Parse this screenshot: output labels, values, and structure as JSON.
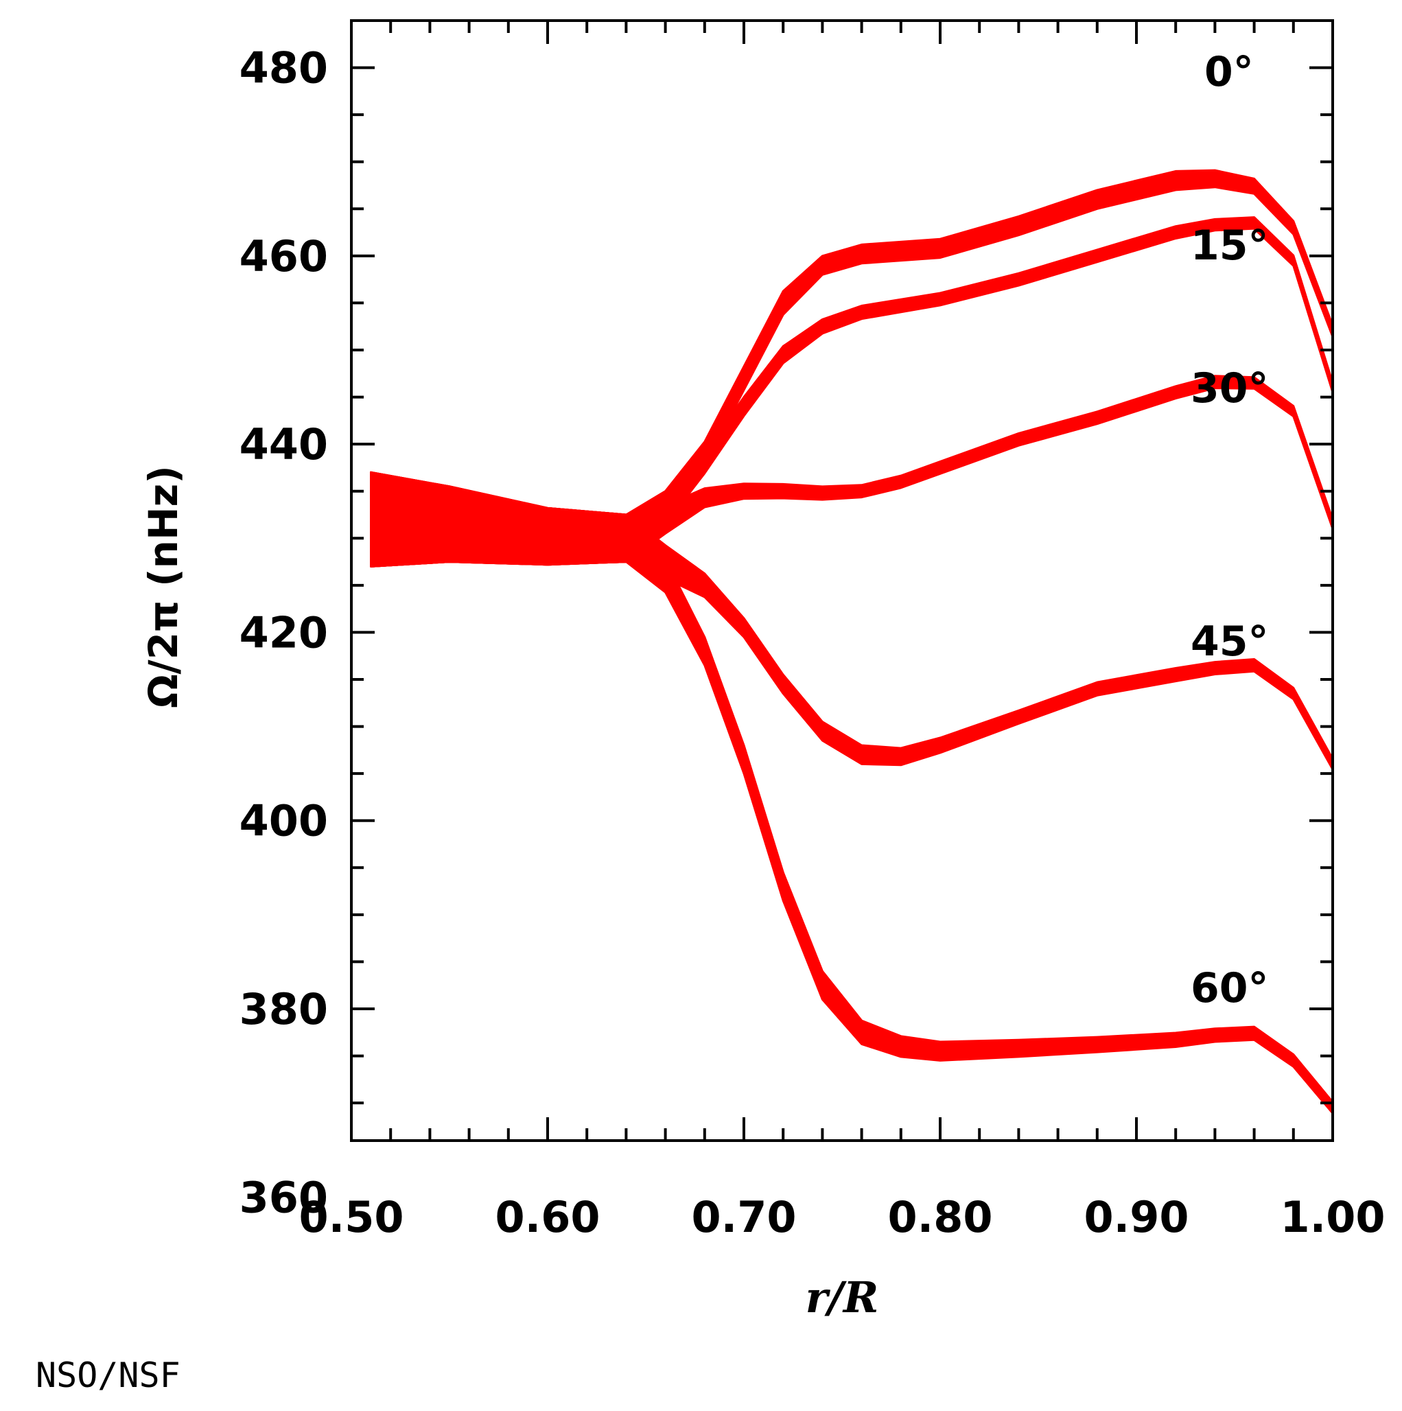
{
  "chart_data": {
    "type": "line",
    "title": "",
    "xlabel": "r/R",
    "ylabel": "Ω/2π (nHz)",
    "xlim": [
      0.5,
      1.0
    ],
    "ylim": [
      366,
      485
    ],
    "xticks": [
      "0.50",
      "0.60",
      "0.70",
      "0.80",
      "0.90",
      "1.00"
    ],
    "yticks": [
      "360",
      "380",
      "400",
      "420",
      "440",
      "460",
      "480"
    ],
    "grid": false,
    "legend": "none",
    "line_color": "#ff0000",
    "series": [
      {
        "name": "0°",
        "x": [
          0.51,
          0.55,
          0.6,
          0.64,
          0.66,
          0.68,
          0.7,
          0.72,
          0.74,
          0.76,
          0.8,
          0.84,
          0.88,
          0.92,
          0.94,
          0.96,
          0.98,
          1.0
        ],
        "y": [
          432.0,
          431.5,
          430.2,
          430.0,
          433.5,
          439.0,
          447.0,
          455.0,
          459.0,
          460.2,
          460.8,
          463.2,
          466.0,
          468.0,
          468.2,
          467.4,
          463.0,
          452.0
        ],
        "width": [
          10,
          8,
          6,
          5,
          3,
          2.5,
          2.5,
          2.5,
          2,
          2,
          2,
          2,
          2,
          2,
          1.8,
          1.6,
          1.4,
          1.2
        ]
      },
      {
        "name": "15°",
        "x": [
          0.51,
          0.55,
          0.6,
          0.64,
          0.66,
          0.68,
          0.7,
          0.72,
          0.74,
          0.76,
          0.8,
          0.84,
          0.88,
          0.92,
          0.94,
          0.96,
          0.98,
          1.0
        ],
        "y": [
          432.0,
          431.5,
          430.2,
          430.0,
          433.0,
          438.0,
          444.0,
          449.5,
          452.5,
          454.0,
          455.4,
          457.5,
          460.0,
          462.5,
          463.3,
          463.5,
          459.5,
          446.0
        ],
        "width": [
          10,
          8,
          6,
          5,
          3,
          2.2,
          2,
          1.8,
          1.5,
          1.4,
          1.3,
          1.3,
          1.3,
          1.3,
          1.2,
          1.2,
          1.1,
          1.0
        ]
      },
      {
        "name": "30°",
        "x": [
          0.51,
          0.55,
          0.6,
          0.64,
          0.66,
          0.68,
          0.7,
          0.72,
          0.74,
          0.76,
          0.78,
          0.8,
          0.84,
          0.88,
          0.92,
          0.94,
          0.96,
          0.98,
          1.0
        ],
        "y": [
          432.0,
          431.5,
          430.2,
          430.0,
          432.0,
          434.3,
          435.0,
          435.0,
          434.8,
          435.0,
          436.0,
          437.5,
          440.5,
          442.8,
          445.5,
          446.6,
          446.5,
          443.5,
          431.5
        ],
        "width": [
          10,
          8,
          6,
          5,
          3,
          2,
          1.6,
          1.5,
          1.4,
          1.3,
          1.3,
          1.3,
          1.3,
          1.3,
          1.3,
          1.3,
          1.2,
          1.1,
          1.0
        ]
      },
      {
        "name": "45°",
        "x": [
          0.51,
          0.55,
          0.6,
          0.64,
          0.66,
          0.68,
          0.7,
          0.72,
          0.74,
          0.76,
          0.78,
          0.8,
          0.84,
          0.88,
          0.92,
          0.94,
          0.96,
          0.98,
          1.0
        ],
        "y": [
          432.0,
          431.5,
          430.2,
          430.0,
          427.5,
          425.0,
          420.5,
          414.5,
          409.5,
          407.0,
          406.8,
          408.0,
          411.0,
          414.0,
          415.5,
          416.2,
          416.5,
          413.5,
          406.0
        ],
        "width": [
          10,
          8,
          6,
          5,
          3.5,
          2.5,
          2,
          2,
          2,
          2,
          1.8,
          1.6,
          1.4,
          1.4,
          1.4,
          1.3,
          1.3,
          1.2,
          1.1
        ]
      },
      {
        "name": "60°",
        "x": [
          0.51,
          0.55,
          0.6,
          0.64,
          0.66,
          0.68,
          0.7,
          0.72,
          0.74,
          0.76,
          0.78,
          0.8,
          0.84,
          0.88,
          0.92,
          0.94,
          0.96,
          0.98,
          1.0
        ],
        "y": [
          432.0,
          431.5,
          430.2,
          430.0,
          426.0,
          418.0,
          406.5,
          393.0,
          382.5,
          377.5,
          376.0,
          375.5,
          375.8,
          376.2,
          376.7,
          377.2,
          377.4,
          374.5,
          369.5
        ],
        "width": [
          10,
          8,
          6,
          5,
          3.5,
          3,
          3,
          3,
          3,
          2.5,
          2.2,
          2,
          1.8,
          1.6,
          1.5,
          1.4,
          1.4,
          1.3,
          1.2
        ]
      }
    ]
  },
  "labels": {
    "lat0": "0°",
    "lat15": "15°",
    "lat30": "30°",
    "lat45": "45°",
    "lat60": "60°"
  },
  "credit": "NSO/NSF"
}
